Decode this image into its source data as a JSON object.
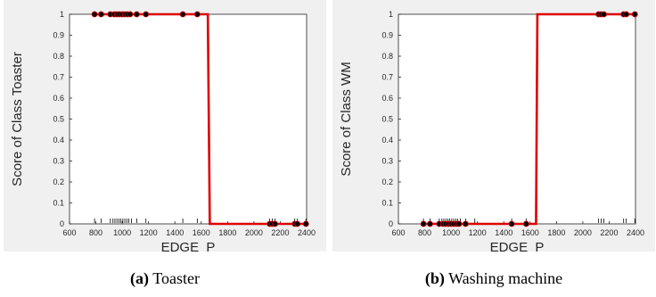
{
  "chart_data": [
    {
      "type": "line",
      "title": "",
      "xlabel": "EDGE_P",
      "ylabel": "Score of Class Toaster",
      "xlim": [
        600,
        2400
      ],
      "ylim": [
        0,
        1
      ],
      "xticks": [
        600,
        800,
        1000,
        1200,
        1400,
        1600,
        1800,
        2000,
        2200,
        2400
      ],
      "yticks": [
        0,
        0.1,
        0.2,
        0.3,
        0.4,
        0.5,
        0.6,
        0.7,
        0.8,
        0.9,
        1
      ],
      "xticklabels": [
        "600",
        "800",
        "1000",
        "1200",
        "1400",
        "1600",
        "1800",
        "2000",
        "2200",
        "2400"
      ],
      "yticklabels": [
        "0",
        "0.1",
        "0.2",
        "0.3",
        "0.4",
        "0.5",
        "0.6",
        "0.7",
        "0.8",
        "0.9",
        "1"
      ],
      "grid": false,
      "line_color": "#dd0000",
      "point_color": "#000000",
      "series": [
        {
          "style": "step-line",
          "x": [
            780,
            1650,
            1665,
            2400
          ],
          "y": [
            1,
            1,
            0,
            0
          ]
        },
        {
          "style": "points",
          "x": [
            790,
            840,
            910,
            940,
            960,
            980,
            1000,
            1020,
            1040,
            1060,
            1110,
            1180,
            1460,
            1570,
            2120,
            2140,
            2160,
            2310,
            2330,
            2395
          ],
          "y": [
            1,
            1,
            1,
            1,
            1,
            1,
            1,
            1,
            1,
            1,
            1,
            1,
            1,
            1,
            0,
            0,
            0,
            0,
            0,
            0
          ]
        }
      ],
      "rug_x": [
        790,
        840,
        910,
        930,
        945,
        960,
        975,
        990,
        1005,
        1020,
        1035,
        1050,
        1070,
        1110,
        1180,
        1460,
        1570,
        2120,
        2140,
        2160,
        2310,
        2330,
        2395
      ]
    },
    {
      "type": "line",
      "title": "",
      "xlabel": "EDGE_P",
      "ylabel": "Score of Class WM",
      "xlim": [
        600,
        2400
      ],
      "ylim": [
        0,
        1
      ],
      "xticks": [
        600,
        800,
        1000,
        1200,
        1400,
        1600,
        1800,
        2000,
        2200,
        2400
      ],
      "yticks": [
        0,
        0.1,
        0.2,
        0.3,
        0.4,
        0.5,
        0.6,
        0.7,
        0.8,
        0.9,
        1
      ],
      "xticklabels": [
        "600",
        "800",
        "1000",
        "1200",
        "1400",
        "1600",
        "1800",
        "2000",
        "2200",
        "2400"
      ],
      "yticklabels": [
        "0",
        "0.1",
        "0.2",
        "0.3",
        "0.4",
        "0.5",
        "0.6",
        "0.7",
        "0.8",
        "0.9",
        "1"
      ],
      "grid": false,
      "line_color": "#dd0000",
      "point_color": "#000000",
      "series": [
        {
          "style": "step-line",
          "x": [
            780,
            1645,
            1655,
            2400
          ],
          "y": [
            0,
            0,
            1,
            1
          ]
        },
        {
          "style": "points",
          "x": [
            790,
            840,
            910,
            940,
            960,
            980,
            1000,
            1020,
            1040,
            1060,
            1110,
            1460,
            1570,
            2120,
            2140,
            2160,
            2310,
            2330,
            2395
          ],
          "y": [
            0,
            0,
            0,
            0,
            0,
            0,
            0,
            0,
            0,
            0,
            0,
            0,
            0,
            1,
            1,
            1,
            1,
            1,
            1
          ]
        }
      ],
      "rug_x": [
        790,
        840,
        910,
        930,
        945,
        960,
        975,
        990,
        1005,
        1020,
        1035,
        1050,
        1070,
        1110,
        1180,
        1460,
        1570,
        2120,
        2140,
        2160,
        2310,
        2330,
        2395
      ]
    }
  ],
  "captions": [
    {
      "tag": "(a)",
      "text": " Toaster"
    },
    {
      "tag": "(b)",
      "text": " Washing machine"
    }
  ]
}
